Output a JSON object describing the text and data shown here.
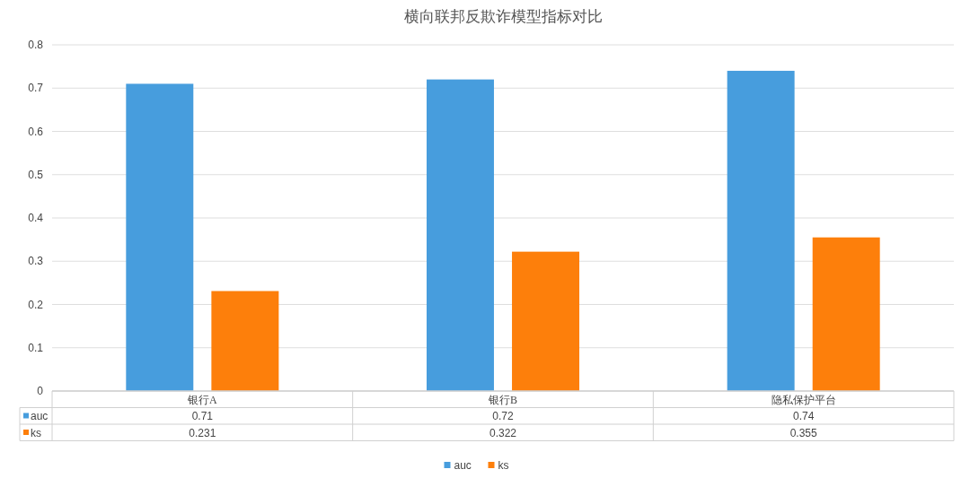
{
  "chart_data": {
    "type": "bar",
    "title": "横向联邦反欺诈模型指标对比",
    "categories": [
      "银行A",
      "银行B",
      "隐私保护平台"
    ],
    "series": [
      {
        "name": "auc",
        "color": "#479ddd",
        "values": [
          0.71,
          0.72,
          0.74
        ]
      },
      {
        "name": "ks",
        "color": "#fd7f0b",
        "values": [
          0.231,
          0.322,
          0.355
        ]
      }
    ],
    "ylim": [
      0,
      0.8
    ],
    "yticks": [
      0,
      0.1,
      0.2,
      0.3,
      0.4,
      0.5,
      0.6,
      0.7,
      0.8
    ],
    "grid": "y",
    "legend": "bottom",
    "data_labels": true
  }
}
